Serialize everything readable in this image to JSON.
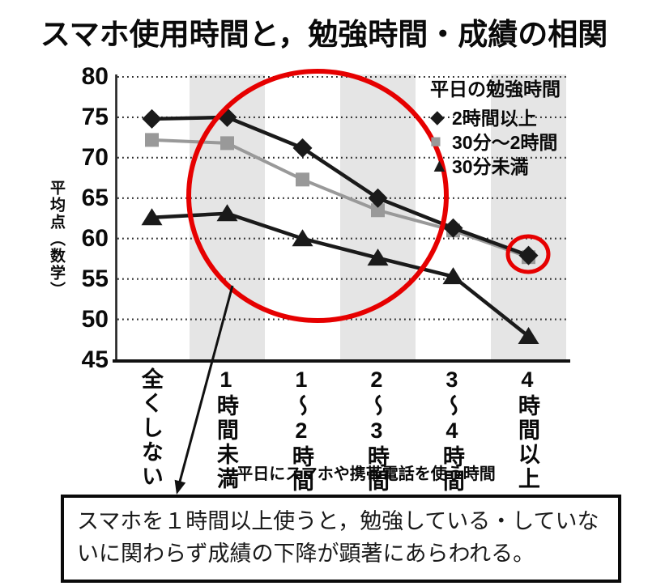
{
  "page": {
    "title": "スマホ使用時間と，勉強時間・成績の相関",
    "background": "#ffffff"
  },
  "chart_data": {
    "type": "line",
    "title": "スマホ使用時間と，勉強時間・成績の相関",
    "ylabel": "平均点（数学）",
    "xlabel": "平日にスマホや携帯電話を使う時間",
    "ylim": [
      45,
      80
    ],
    "yticks": [
      80,
      75,
      70,
      65,
      60,
      55,
      50,
      45
    ],
    "categories": [
      "全くしない",
      "1時間未満",
      "1～2時間",
      "2～3時間",
      "3～4時間",
      "4時間以上"
    ],
    "grid": "horizontal-dotted",
    "band_color": "#e5e5e5",
    "band_columns": [
      1,
      3,
      5
    ],
    "annotation_color": "#e60000",
    "legend": {
      "title": "平日の勉強時間",
      "position": "top-right"
    },
    "series": [
      {
        "name": "2時間以上",
        "marker": "diamond",
        "glyph": "◆",
        "color": "#1a1a1a",
        "values": [
          74.8,
          75.0,
          71.2,
          65.0,
          61.3,
          57.9
        ]
      },
      {
        "name": "30分～2時間",
        "marker": "square",
        "glyph": "■",
        "color": "#999999",
        "values": [
          72.2,
          71.8,
          67.3,
          63.5,
          61.0,
          57.7
        ]
      },
      {
        "name": "30分未満",
        "marker": "triangle",
        "glyph": "▲",
        "color": "#1a1a1a",
        "values": [
          62.6,
          63.1,
          60.0,
          57.6,
          55.3,
          47.9
        ]
      }
    ],
    "annotations": [
      "大きい赤丸：1時間未満～3～4時間の成績低下範囲",
      "小さい赤丸：4時間以上・2時間以上勉強の点"
    ]
  },
  "note": {
    "text": "スマホを１時間以上使うと，勉強している・していないに関わらず成績の下降が顕著にあらわれる。"
  }
}
